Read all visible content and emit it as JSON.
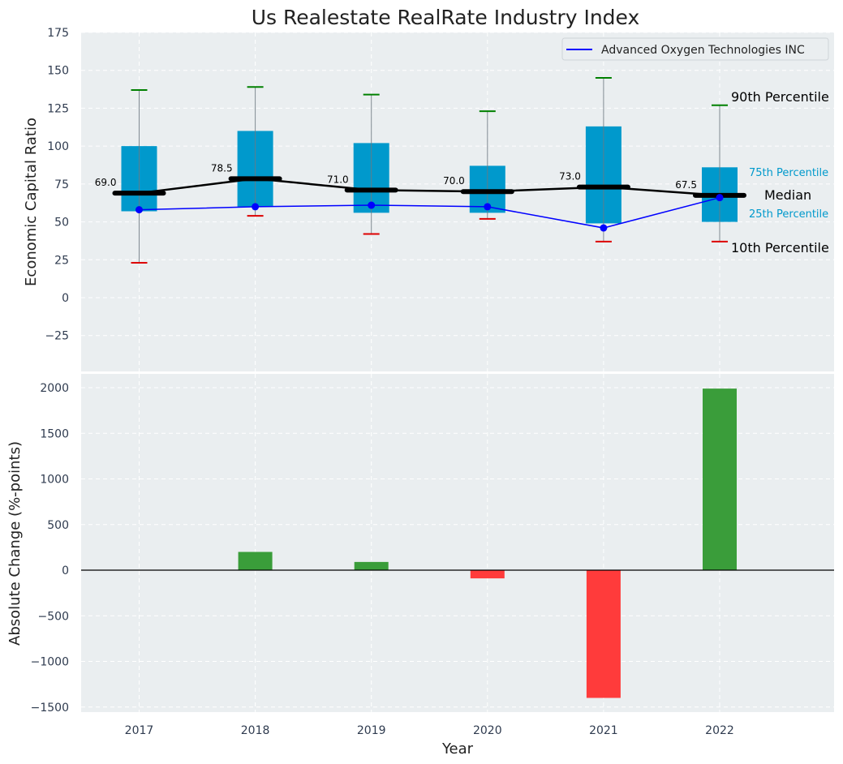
{
  "chart_data": [
    {
      "type": "box",
      "title": "Us Realestate RealRate Industry Index",
      "ylabel": "Economic Capital Ratio",
      "ylim": [
        -50,
        175
      ],
      "yticks": [
        175,
        150,
        125,
        100,
        75,
        50,
        25,
        0,
        -25
      ],
      "ytick_labels": [
        "175",
        "150",
        "125",
        "100",
        "75",
        "50",
        "25",
        "0",
        "−25"
      ],
      "categories": [
        "2017",
        "2018",
        "2019",
        "2020",
        "2021",
        "2022"
      ],
      "p10": [
        23,
        54,
        42,
        52,
        37,
        37
      ],
      "p25": [
        57,
        60,
        56,
        56,
        49,
        50
      ],
      "median": [
        69.0,
        78.5,
        71.0,
        70.0,
        73.0,
        67.5
      ],
      "median_labels": [
        "69.0",
        "78.5",
        "71.0",
        "70.0",
        "73.0",
        "67.5"
      ],
      "p75": [
        100,
        110,
        102,
        87,
        113,
        86
      ],
      "p90": [
        137,
        139,
        134,
        123,
        145,
        127
      ],
      "series": [
        {
          "name": "Advanced Oxygen Technologies INC",
          "values": [
            58,
            60,
            61,
            60,
            46,
            66
          ]
        }
      ],
      "annotations": {
        "p90": "90th Percentile",
        "p75": "75th Percentile",
        "median": "Median",
        "p25": "25th Percentile",
        "p10": "10th Percentile"
      },
      "legend": "top-right",
      "grid": true
    },
    {
      "type": "bar",
      "xlabel": "Year",
      "ylabel": "Absolute Change (%-points)",
      "ylim": [
        -1550,
        2200
      ],
      "yticks": [
        2000,
        1500,
        1000,
        500,
        0,
        -500,
        -1000,
        -1500
      ],
      "ytick_labels": [
        "2000",
        "1500",
        "1000",
        "500",
        "0",
        "−500",
        "−1000",
        "−1500"
      ],
      "categories": [
        "2017",
        "2018",
        "2019",
        "2020",
        "2021",
        "2022"
      ],
      "values": [
        0,
        200,
        90,
        -90,
        -1400,
        1990
      ],
      "grid": true
    }
  ],
  "colors": {
    "box": "#0099cc",
    "median": "#000000",
    "series": "#0000ff",
    "p90_cap": "#008000",
    "p10_cap": "#dd0000",
    "positive": "#3a9d3a",
    "negative": "#ff3b3b",
    "panel_bg": "#eaeef0"
  }
}
